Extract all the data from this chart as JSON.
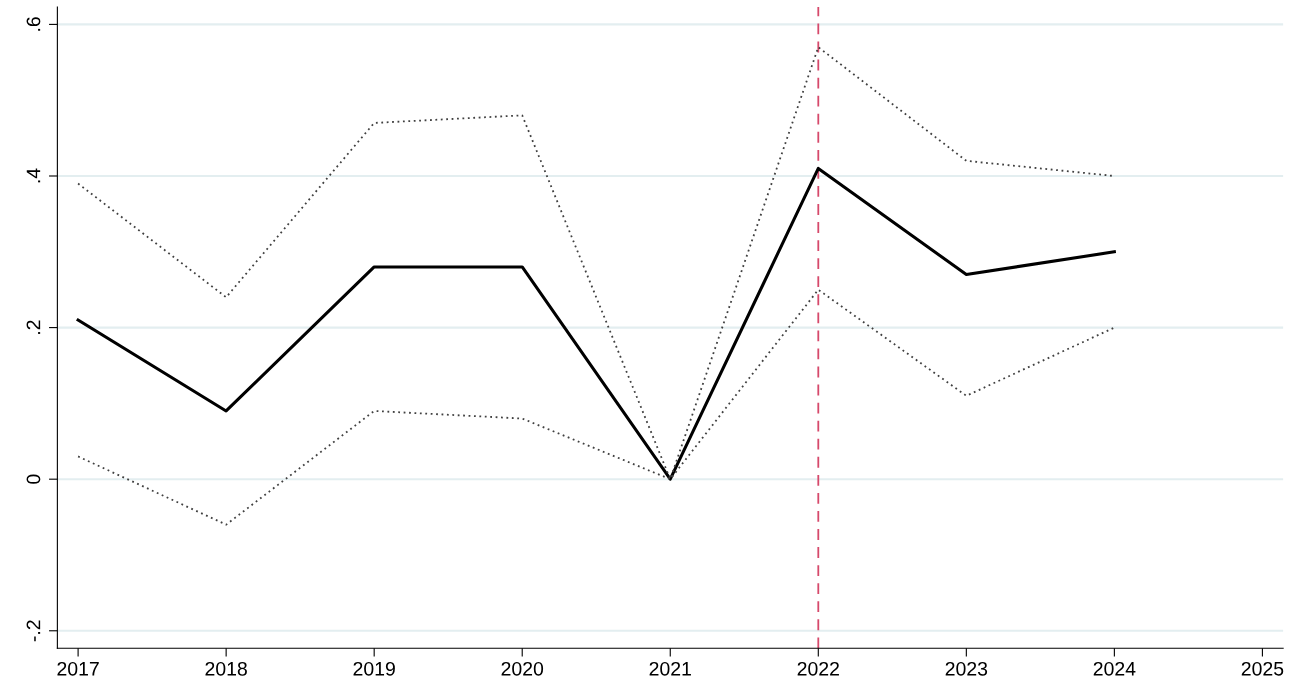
{
  "chart_data": {
    "type": "line",
    "x": [
      2017,
      2018,
      2019,
      2020,
      2021,
      2022,
      2023,
      2024
    ],
    "series": [
      {
        "color": "#000000",
        "line_style": "solid",
        "values": [
          0.21,
          0.09,
          0.28,
          0.28,
          0.0,
          0.41,
          0.27,
          0.3
        ]
      },
      {
        "color": "#404040",
        "line_style": "dotted",
        "values": [
          0.39,
          0.24,
          0.47,
          0.48,
          0.0,
          0.57,
          0.42,
          0.4
        ]
      },
      {
        "color": "#404040",
        "line_style": "dotted",
        "values": [
          0.03,
          -0.06,
          0.09,
          0.08,
          0.0,
          0.25,
          0.11,
          0.2
        ]
      }
    ],
    "xlim": [
      2016.86,
      2025.14
    ],
    "xticks": [
      2017,
      2018,
      2019,
      2020,
      2021,
      2022,
      2023,
      2024,
      2025
    ],
    "ylim": [
      -0.223,
      0.623
    ],
    "yticks": [
      {
        "value": -0.2,
        "label": "-.2"
      },
      0,
      {
        "value": 0.2,
        "label": ".2"
      },
      {
        "value": 0.4,
        "label": ".4"
      },
      {
        "value": 0.6,
        "label": ".6"
      }
    ],
    "grid": "y",
    "ref_lines": [
      {
        "axis": "x",
        "value": 2022,
        "color": "#d6496b",
        "line_style": "dashed"
      }
    ],
    "marker": "none",
    "legend": false
  }
}
